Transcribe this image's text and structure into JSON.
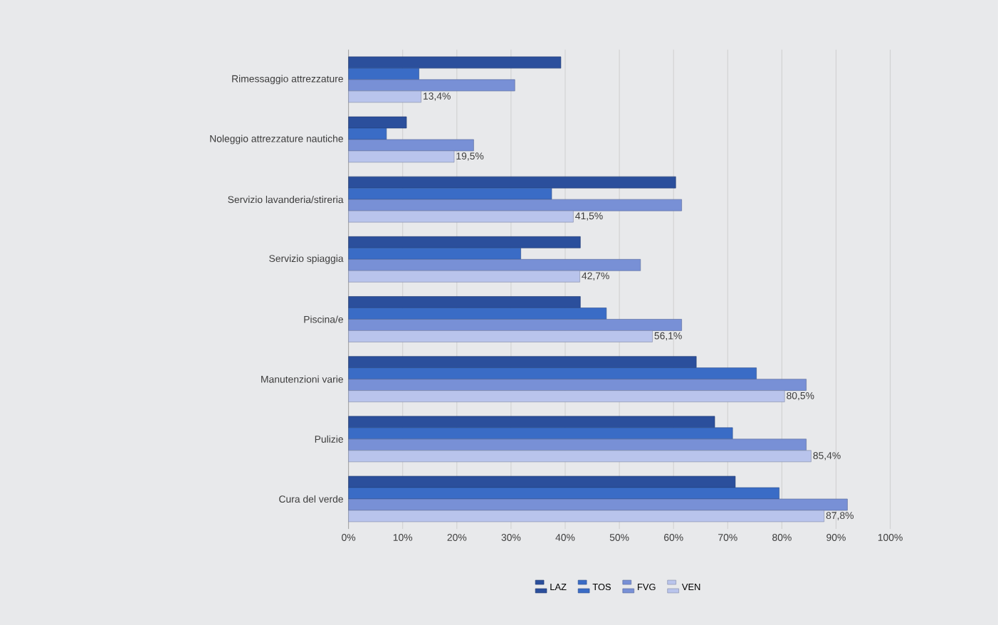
{
  "chart_data": {
    "type": "bar",
    "orientation": "horizontal",
    "categories": [
      "Rimessaggio attrezzature",
      "Noleggio attrezzature nautiche",
      "Servizio lavanderia/stireria",
      "Servizio spiaggia",
      "Piscina/e",
      "Manutenzioni varie",
      "Pulizie",
      "Cura del verde"
    ],
    "series": [
      {
        "name": "LAZ",
        "color": "#2b4f9c",
        "values": [
          39.2,
          10.7,
          60.4,
          42.8,
          42.8,
          64.2,
          67.6,
          71.4
        ]
      },
      {
        "name": "TOS",
        "color": "#3a6cc6",
        "values": [
          13.0,
          7.0,
          37.5,
          31.8,
          47.6,
          75.3,
          70.9,
          79.5
        ]
      },
      {
        "name": "FVG",
        "color": "#7890d6",
        "values": [
          30.7,
          23.1,
          61.5,
          53.9,
          61.5,
          84.5,
          84.5,
          92.1
        ]
      },
      {
        "name": "VEN",
        "color": "#b9c4ec",
        "values": [
          13.4,
          19.5,
          41.5,
          42.7,
          56.1,
          80.5,
          85.4,
          87.8
        ],
        "value_labels": [
          "13,4%",
          "19,5%",
          "41,5%",
          "42,7%",
          "56,1%",
          "80,5%",
          "85,4%",
          "87,8%"
        ]
      }
    ],
    "xlim": [
      0,
      100
    ],
    "xticks": [
      {
        "value": 0,
        "label": "0%"
      },
      {
        "value": 10,
        "label": "10%"
      },
      {
        "value": 20,
        "label": "20%"
      },
      {
        "value": 30,
        "label": "30%"
      },
      {
        "value": 40,
        "label": "40%"
      },
      {
        "value": 50,
        "label": "50%"
      },
      {
        "value": 60,
        "label": "60%"
      },
      {
        "value": 70,
        "label": "70%"
      },
      {
        "value": 80,
        "label": "80%"
      },
      {
        "value": 90,
        "label": "90%"
      },
      {
        "value": 100,
        "label": "100%"
      }
    ],
    "grid": "x",
    "legend": "bottom"
  }
}
